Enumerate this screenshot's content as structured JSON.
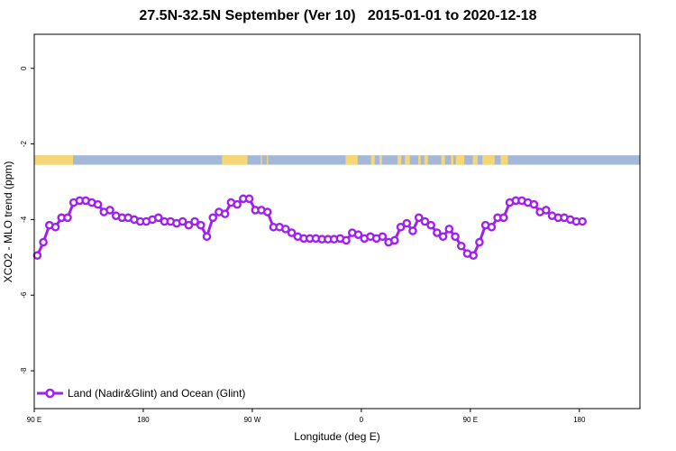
{
  "chart_data": {
    "type": "line",
    "title": "27.5N-32.5N September (Ver 10)   2015-01-01 to 2020-12-18",
    "xlabel": "Longitude (deg E)",
    "ylabel": "XCO2 - MLO trend (ppm)",
    "xlim": [
      90,
      590
    ],
    "ylim": [
      -9,
      0.9
    ],
    "x_ticks": [
      {
        "value": 90,
        "label": "90 E"
      },
      {
        "value": 180,
        "label": "180"
      },
      {
        "value": 270,
        "label": "90 W"
      },
      {
        "value": 360,
        "label": "0"
      },
      {
        "value": 450,
        "label": "90 E"
      },
      {
        "value": 540,
        "label": "180"
      }
    ],
    "y_ticks": [
      {
        "value": 0,
        "label": "0"
      },
      {
        "value": -2,
        "label": "-2"
      },
      {
        "value": -4,
        "label": "-4"
      },
      {
        "value": -6,
        "label": "-6"
      },
      {
        "value": -8,
        "label": "-8"
      }
    ],
    "grid": false,
    "legend": {
      "position": "bottom-left"
    },
    "series": [
      {
        "name": "Land (Nadir&Glint) and Ocean (Glint)",
        "color": "#a020f0",
        "x": [
          92.5,
          97.5,
          102.5,
          107.5,
          112.5,
          117.5,
          122.5,
          127.5,
          132.5,
          137.5,
          142.5,
          147.5,
          152.5,
          157.5,
          162.5,
          167.5,
          172.5,
          177.5,
          182.5,
          187.5,
          192.5,
          197.5,
          202.5,
          207.5,
          212.5,
          217.5,
          222.5,
          227.5,
          232.5,
          237.5,
          242.5,
          247.5,
          252.5,
          257.5,
          262.5,
          267.5,
          272.5,
          277.5,
          282.5,
          287.5,
          292.5,
          297.5,
          302.5,
          307.5,
          312.5,
          317.5,
          322.5,
          327.5,
          332.5,
          337.5,
          342.5,
          347.5,
          352.5,
          357.5,
          362.5,
          367.5,
          372.5,
          377.5,
          382.5,
          387.5,
          392.5,
          397.5,
          402.5,
          407.5,
          412.5,
          417.5,
          422.5,
          427.5,
          432.5,
          437.5,
          442.5,
          447.5,
          452.5,
          457.5,
          462.5,
          467.5,
          472.5,
          477.5,
          482.5,
          487.5,
          492.5,
          497.5,
          502.5,
          507.5,
          512.5,
          517.5,
          522.5,
          527.5,
          532.5,
          537.5,
          542.5
        ],
        "y": [
          -4.95,
          -4.6,
          -4.15,
          -4.2,
          -3.95,
          -3.95,
          -3.55,
          -3.5,
          -3.5,
          -3.55,
          -3.6,
          -3.8,
          -3.75,
          -3.9,
          -3.95,
          -3.95,
          -4.0,
          -4.05,
          -4.05,
          -4.0,
          -3.95,
          -4.05,
          -4.05,
          -4.1,
          -4.05,
          -4.15,
          -4.05,
          -4.15,
          -4.45,
          -3.95,
          -3.8,
          -3.85,
          -3.55,
          -3.6,
          -3.45,
          -3.45,
          -3.75,
          -3.75,
          -3.8,
          -4.2,
          -4.2,
          -4.25,
          -4.35,
          -4.45,
          -4.5,
          -4.5,
          -4.5,
          -4.52,
          -4.52,
          -4.52,
          -4.5,
          -4.55,
          -4.35,
          -4.4,
          -4.5,
          -4.45,
          -4.5,
          -4.45,
          -4.6,
          -4.55,
          -4.2,
          -4.1,
          -4.3,
          -3.95,
          -4.05,
          -4.15,
          -4.35,
          -4.45,
          -4.25,
          -4.45,
          -4.7,
          -4.9,
          -4.95,
          -4.6,
          -4.15,
          -4.2,
          -3.95,
          -3.95,
          -3.55,
          -3.5,
          -3.5,
          -3.55,
          -3.6,
          -3.8,
          -3.75,
          -3.9,
          -3.95,
          -3.95,
          -4.0,
          -4.05,
          -4.05
        ]
      }
    ],
    "surface_strip": {
      "y_range": [
        -2.55,
        -2.3
      ],
      "land_color": "#f7d775",
      "ocean_color": "#a4b8d9",
      "land_segments": [
        [
          90,
          122
        ],
        [
          245,
          266
        ],
        [
          277,
          278
        ],
        [
          282,
          283
        ],
        [
          347,
          357
        ],
        [
          368,
          371
        ],
        [
          375,
          377
        ],
        [
          390,
          393
        ],
        [
          396,
          400
        ],
        [
          407,
          409
        ],
        [
          412,
          415
        ],
        [
          426,
          429
        ],
        [
          434,
          436
        ],
        [
          438,
          445
        ],
        [
          452,
          456
        ],
        [
          460,
          470
        ],
        [
          475,
          481
        ]
      ]
    }
  }
}
